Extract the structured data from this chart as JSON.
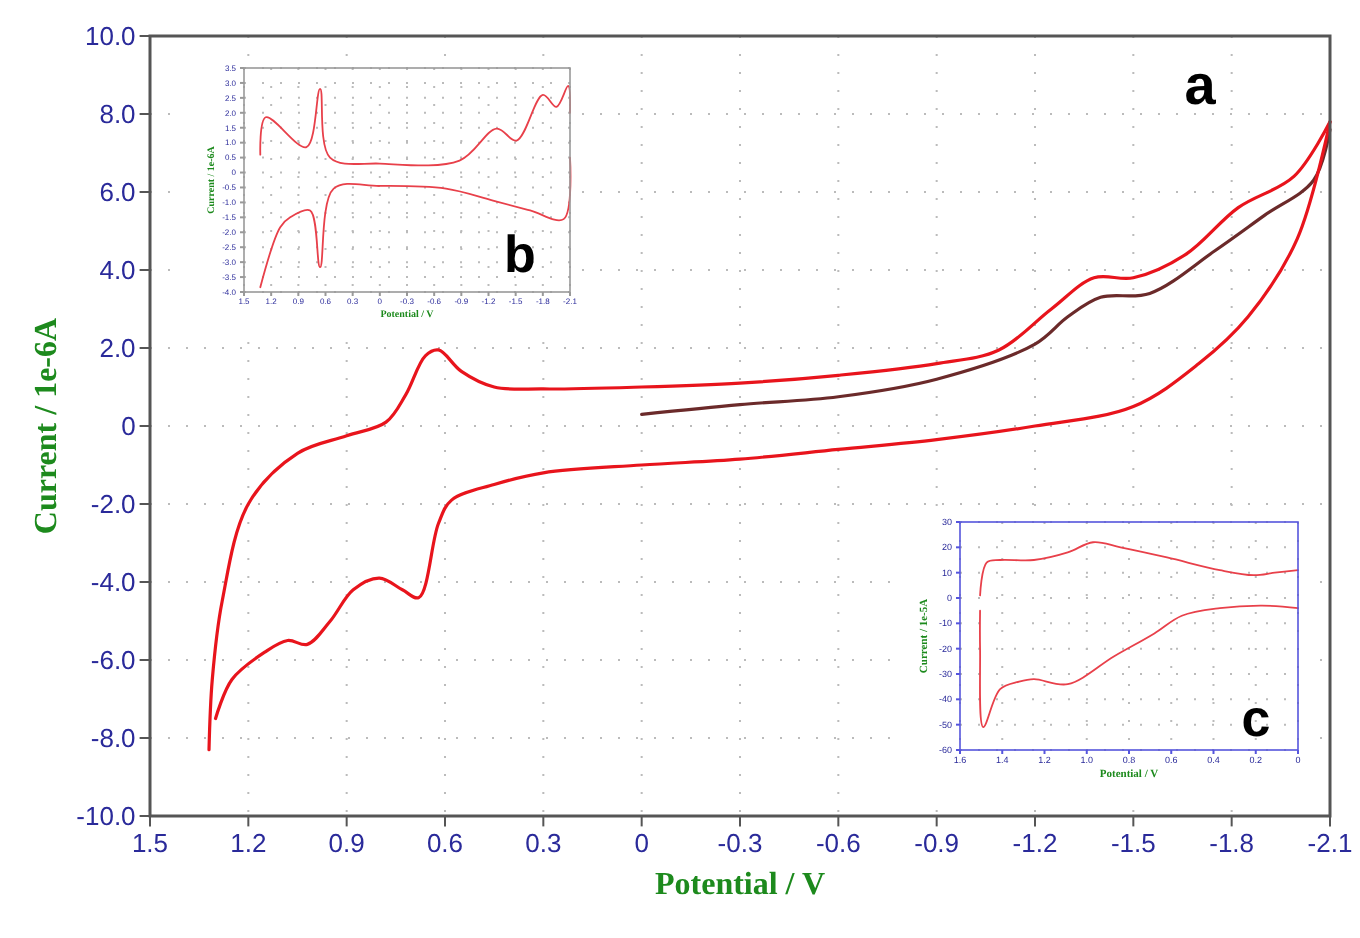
{
  "chart_data": [
    {
      "type": "line",
      "xlabel": "Potential / V",
      "ylabel": "Current / 1e-6A",
      "annotations": [
        "a"
      ],
      "xlim": [
        1.5,
        -2.1
      ],
      "ylim": [
        -10,
        10
      ],
      "xticks": [
        1.5,
        1.2,
        0.9,
        0.6,
        0.3,
        0,
        -0.3,
        -0.6,
        -0.9,
        -1.2,
        -1.5,
        -1.8,
        -2.1
      ],
      "yticks": [
        {
          "value": 10,
          "label": "10.0"
        },
        {
          "value": 8,
          "label": "8.0"
        },
        {
          "value": 6,
          "label": "6.0"
        },
        {
          "value": 4,
          "label": "4.0"
        },
        {
          "value": 2,
          "label": "2.0"
        },
        0,
        {
          "value": -2,
          "label": "-2.0"
        },
        {
          "value": -4,
          "label": "-4.0"
        },
        {
          "value": -6,
          "label": "-6.0"
        },
        {
          "value": -8,
          "label": "-8.0"
        },
        {
          "value": -10,
          "label": "-10.0"
        }
      ],
      "grid": true,
      "series": [
        {
          "color": "#6b2a2a",
          "x": [
            0,
            -0.3,
            -0.6,
            -0.9,
            -1.2,
            -1.3,
            -1.4,
            -1.55,
            -1.75,
            -1.9,
            -2.05,
            -2.1
          ],
          "values": [
            0.3,
            0.55,
            0.75,
            1.2,
            2.1,
            2.8,
            3.3,
            3.4,
            4.5,
            5.4,
            6.3,
            7.6
          ]
        },
        {
          "color": "#e8141c",
          "x": [
            -2.1,
            -1.99,
            -1.82,
            -1.66,
            -1.5,
            -1.38,
            -1.25,
            -1.09,
            -0.9,
            -0.6,
            -0.3,
            0,
            0.3,
            0.45,
            0.55,
            0.62,
            0.66,
            0.72,
            0.78,
            0.9,
            1.05,
            1.2,
            1.28,
            1.31,
            1.32
          ],
          "values": [
            7.8,
            6.4,
            5.6,
            4.4,
            3.8,
            3.8,
            3.0,
            1.95,
            1.6,
            1.3,
            1.1,
            1.0,
            0.95,
            1.0,
            1.4,
            1.95,
            1.8,
            0.8,
            0.1,
            -0.25,
            -0.7,
            -2.0,
            -4.5,
            -6.5,
            -8.3
          ]
        },
        {
          "color": "#e8141c",
          "x": [
            1.3,
            1.25,
            1.15,
            1.08,
            1.02,
            0.95,
            0.88,
            0.8,
            0.73,
            0.68,
            0.62,
            0.58,
            0.45,
            0.3,
            0,
            -0.3,
            -0.6,
            -0.9,
            -1.2,
            -1.5,
            -1.7,
            -1.85,
            -2.0,
            -2.1
          ],
          "values": [
            -7.5,
            -6.5,
            -5.8,
            -5.5,
            -5.6,
            -5.0,
            -4.2,
            -3.9,
            -4.2,
            -4.4,
            -2.5,
            -1.9,
            -1.5,
            -1.2,
            -1.0,
            -0.85,
            -0.6,
            -0.35,
            0,
            0.5,
            1.6,
            2.8,
            4.8,
            7.8
          ]
        }
      ]
    },
    {
      "type": "line",
      "xlabel": "Potential / V",
      "ylabel": "Current / 1e-6A",
      "annotations": [
        "b"
      ],
      "xlim": [
        1.5,
        -2.1
      ],
      "ylim": [
        -4,
        3.5
      ],
      "xticks": [
        1.5,
        1.2,
        0.9,
        0.6,
        0.3,
        0,
        -0.3,
        -0.6,
        -0.9,
        -1.2,
        -1.5,
        -1.8,
        -2.1
      ],
      "yticks": [
        3.5,
        {
          "value": 3,
          "label": "3.0"
        },
        2.5,
        {
          "value": 2,
          "label": "2.0"
        },
        1.5,
        {
          "value": 1,
          "label": "1.0"
        },
        0.5,
        0,
        -0.5,
        {
          "value": -1,
          "label": "-1.0"
        },
        -1.5,
        {
          "value": -2,
          "label": "-2.0"
        },
        -2.5,
        {
          "value": -3,
          "label": "-3.0"
        },
        -3.5,
        {
          "value": -4,
          "label": "-4.0"
        }
      ],
      "grid": true,
      "series": [
        {
          "color": "#e8404a",
          "x": [
            1.32,
            1.26,
            0.81,
            0.66,
            0.55,
            0,
            -0.88,
            -1.29,
            -1.51,
            -1.8,
            -1.95,
            -2.08,
            -2.1
          ],
          "values": [
            0.6,
            1.85,
            0.85,
            2.8,
            0.5,
            0.3,
            0.4,
            1.47,
            1.07,
            2.6,
            2.2,
            2.9,
            2.0
          ]
        },
        {
          "color": "#e8404a",
          "x": [
            -2.1,
            -2.03,
            -1.66,
            -1.25,
            -0.73,
            0,
            0.51,
            0.66,
            0.77,
            0.99,
            1.1,
            1.32
          ],
          "values": [
            0.5,
            -1.56,
            -1.27,
            -0.94,
            -0.54,
            -0.45,
            -0.54,
            -3.17,
            -1.27,
            -1.5,
            -1.83,
            -3.84
          ]
        }
      ]
    },
    {
      "type": "line",
      "xlabel": "Potential / V",
      "ylabel": "Current / 1e-5A",
      "annotations": [
        "c"
      ],
      "xlim": [
        1.6,
        0
      ],
      "ylim": [
        -60,
        30
      ],
      "xticks": [
        1.6,
        1.4,
        1.2,
        {
          "value": 1,
          "label": "1.0"
        },
        0.8,
        0.6,
        0.4,
        0.2,
        0
      ],
      "yticks": [
        30,
        20,
        10,
        0,
        -10,
        -20,
        -30,
        -40,
        -50,
        -60
      ],
      "grid": true,
      "series": [
        {
          "color": "#e8404a",
          "x": [
            1.505,
            1.474,
            1.41,
            1.25,
            1.09,
            0.97,
            0.84,
            0.62,
            0.37,
            0.21,
            0.11,
            0
          ],
          "values": [
            1,
            14,
            15,
            15,
            18,
            22,
            20,
            16,
            11,
            9,
            10,
            11
          ]
        },
        {
          "color": "#e8404a",
          "x": [
            0,
            0.17,
            0.37,
            0.55,
            0.68,
            0.87,
            1.09,
            1.25,
            1.32,
            1.41,
            1.49,
            1.505,
            1.505
          ],
          "values": [
            -4,
            -3,
            -4,
            -7,
            -14,
            -23,
            -34,
            -32,
            -33,
            -36,
            -51,
            -20,
            -5
          ]
        }
      ]
    }
  ]
}
